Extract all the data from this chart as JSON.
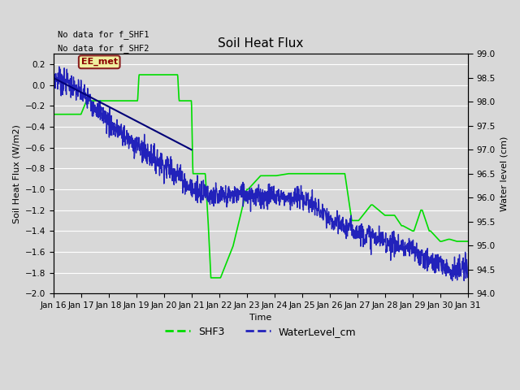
{
  "title": "Soil Heat Flux",
  "xlabel": "Time",
  "ylabel_left": "Soil Heat Flux (W/m2)",
  "ylabel_right": "Water level (cm)",
  "no_data_text": [
    "No data for f_SHF1",
    "No data for f_SHF2"
  ],
  "ee_met_label": "EE_met",
  "ylim_left": [
    -2.0,
    0.3
  ],
  "ylim_right": [
    94.0,
    99.0
  ],
  "yticks_left": [
    -2.0,
    -1.8,
    -1.6,
    -1.4,
    -1.2,
    -1.0,
    -0.8,
    -0.6,
    -0.4,
    -0.2,
    0.0,
    0.2
  ],
  "yticks_right": [
    94.0,
    94.5,
    95.0,
    95.5,
    96.0,
    96.5,
    97.0,
    97.5,
    98.0,
    98.5,
    99.0
  ],
  "xtick_labels": [
    "Jan 16",
    "Jan 17",
    "Jan 18",
    "Jan 19",
    "Jan 20",
    "Jan 21",
    "Jan 22",
    "Jan 23",
    "Jan 24",
    "Jan 25",
    "Jan 26",
    "Jan 27",
    "Jan 28",
    "Jan 29",
    "Jan 30",
    "Jan 31"
  ],
  "bg_color": "#d8d8d8",
  "plot_bg_color": "#d8d8d8",
  "shf3_color": "#00dd00",
  "water_color": "#2222bb",
  "ee_line_color": "#000077",
  "legend_entries": [
    "SHF3",
    "WaterLevel_cm"
  ],
  "title_fontsize": 11,
  "axis_fontsize": 8,
  "tick_fontsize": 7.5
}
